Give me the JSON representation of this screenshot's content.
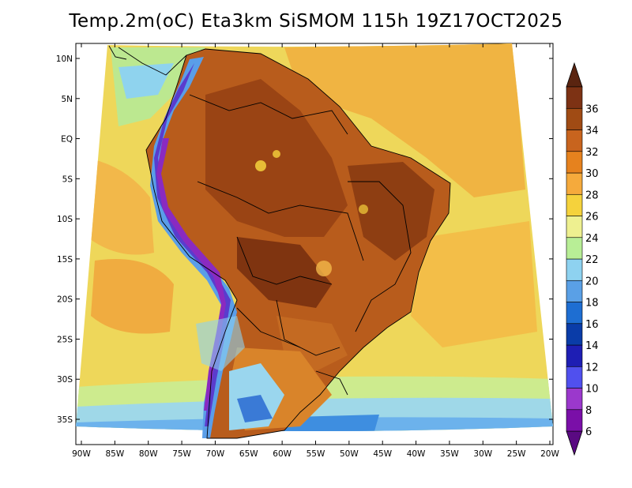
{
  "title": "Temp.2m(oC) Eta3km SiSMOM 115h 19Z17OCT2025",
  "map": {
    "variable": "Temp.2m",
    "units": "oC",
    "lat_labels": [
      "10N",
      "5N",
      "EQ",
      "5S",
      "10S",
      "15S",
      "20S",
      "25S",
      "30S",
      "35S"
    ],
    "lat_values": [
      10,
      5,
      0,
      -5,
      -10,
      -15,
      -20,
      -25,
      -30,
      -35
    ],
    "lon_labels": [
      "90W",
      "85W",
      "80W",
      "75W",
      "70W",
      "65W",
      "60W",
      "55W",
      "50W",
      "45W",
      "40W",
      "35W",
      "30W",
      "25W",
      "20W"
    ],
    "lon_values": [
      -90,
      -85,
      -80,
      -75,
      -70,
      -65,
      -60,
      -55,
      -50,
      -45,
      -40,
      -35,
      -30,
      -25,
      -20
    ]
  },
  "colorbar": {
    "labels": [
      "6",
      "8",
      "10",
      "12",
      "14",
      "16",
      "18",
      "20",
      "22",
      "24",
      "26",
      "28",
      "30",
      "32",
      "34",
      "36"
    ],
    "colors": [
      "#7a0fa8",
      "#9b38cc",
      "#5050ee",
      "#1e1eb4",
      "#0a3ca8",
      "#1e6ed2",
      "#5aa0e6",
      "#8ed2f0",
      "#b8ee96",
      "#eef090",
      "#f5d23c",
      "#f5aa3c",
      "#e6821e",
      "#c8641e",
      "#a04b14",
      "#7d3214"
    ],
    "arrow_low": "#5a0a82",
    "arrow_high": "#5a2410"
  }
}
